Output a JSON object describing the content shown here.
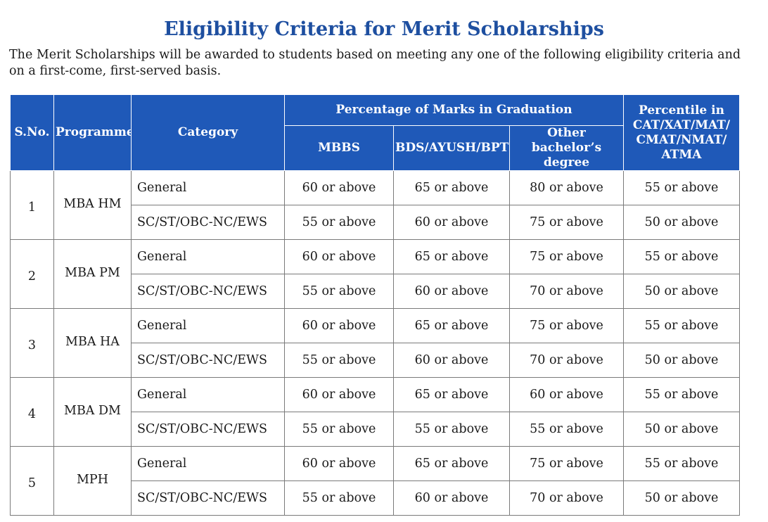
{
  "title": "Eligibility Criteria for Merit Scholarships",
  "intro": "The Merit Scholarships will be awarded to students based on meeting any one of the following eligibility criteria and on a first-come, first-served basis.",
  "table": {
    "headers": {
      "sno": "S.No.",
      "programme": "Programme",
      "category": "Category",
      "graduation_group": "Percentage of Marks in Graduation",
      "mbbs": "MBBS",
      "bds": "BDS/AYUSH/BPT",
      "other": "Other bachelor’s degree",
      "percentile": "Percentile in CAT/XAT/MAT/ CMAT/NMAT/ ATMA"
    },
    "rows": [
      {
        "sno": "1",
        "programme": "MBA HM",
        "general": {
          "category": "General",
          "mbbs": "60 or above",
          "bds": "65 or above",
          "other": "80 or above",
          "percentile": "55 or above"
        },
        "reserved": {
          "category": "SC/ST/OBC-NC/EWS",
          "mbbs": "55 or above",
          "bds": "60 or above",
          "other": "75 or above",
          "percentile": "50 or above"
        }
      },
      {
        "sno": "2",
        "programme": "MBA PM",
        "general": {
          "category": "General",
          "mbbs": "60 or above",
          "bds": "65 or above",
          "other": "75 or above",
          "percentile": "55 or above"
        },
        "reserved": {
          "category": "SC/ST/OBC-NC/EWS",
          "mbbs": "55 or above",
          "bds": "60 or above",
          "other": "70 or above",
          "percentile": "50 or above"
        }
      },
      {
        "sno": "3",
        "programme": "MBA HA",
        "general": {
          "category": "General",
          "mbbs": "60 or above",
          "bds": "65 or above",
          "other": "75 or above",
          "percentile": "55 or above"
        },
        "reserved": {
          "category": "SC/ST/OBC-NC/EWS",
          "mbbs": "55 or above",
          "bds": "60 or above",
          "other": "70 or above",
          "percentile": "50 or above"
        }
      },
      {
        "sno": "4",
        "programme": "MBA DM",
        "general": {
          "category": "General",
          "mbbs": "60 or above",
          "bds": "65 or above",
          "other": "60 or above",
          "percentile": "55 or above"
        },
        "reserved": {
          "category": "SC/ST/OBC-NC/EWS",
          "mbbs": "55 or above",
          "bds": "55 or above",
          "other": "55 or above",
          "percentile": "50 or above"
        }
      },
      {
        "sno": "5",
        "programme": "MPH",
        "general": {
          "category": "General",
          "mbbs": "60 or above",
          "bds": "65 or above",
          "other": "75 or above",
          "percentile": "55 or above"
        },
        "reserved": {
          "category": "SC/ST/OBC-NC/EWS",
          "mbbs": "55 or above",
          "bds": "60 or above",
          "other": "70 or above",
          "percentile": "50 or above"
        }
      }
    ]
  }
}
